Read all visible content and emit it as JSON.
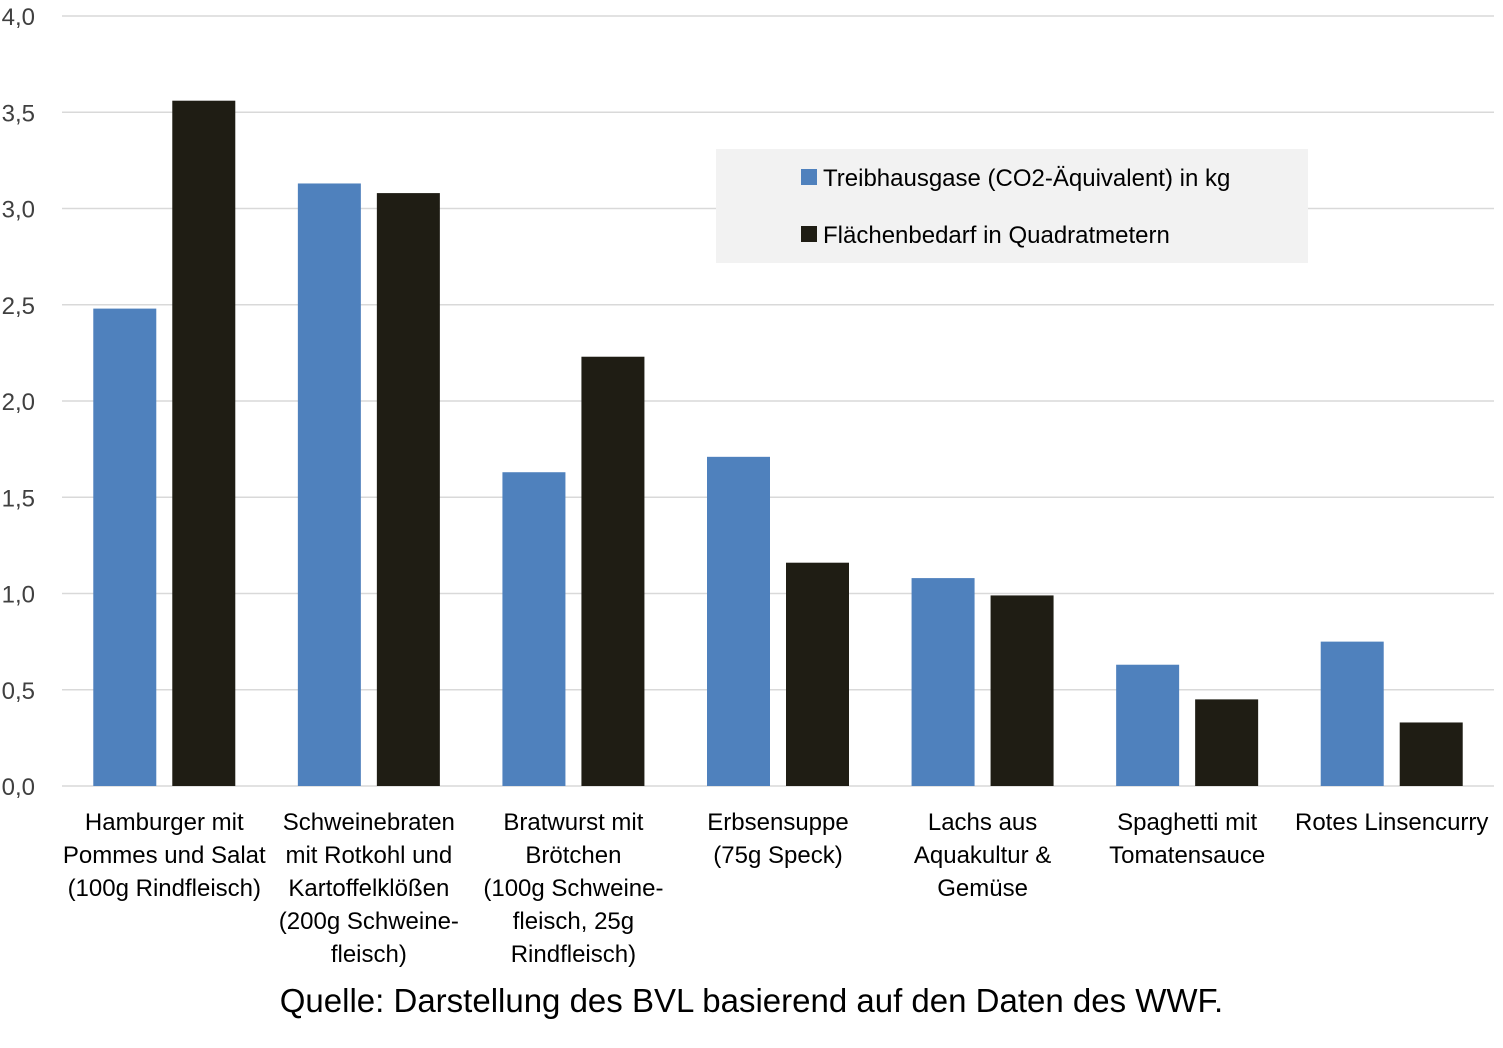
{
  "chart_data": {
    "type": "bar",
    "title": "",
    "xlabel": "",
    "ylabel": "",
    "ylim": [
      0,
      4.0
    ],
    "y_ticks": [
      "0,0",
      "0,5",
      "1,0",
      "1,5",
      "2,0",
      "2,5",
      "3,0",
      "3,5",
      "4,0"
    ],
    "y_tick_values": [
      0,
      0.5,
      1.0,
      1.5,
      2.0,
      2.5,
      3.0,
      3.5,
      4.0
    ],
    "grid": true,
    "legend_position": "top-right",
    "categories": [
      [
        "Hamburger mit",
        "Pommes und Salat",
        "(100g Rindfleisch)"
      ],
      [
        "Schweinebraten",
        "mit Rotkohl und",
        "Kartoffelklößen",
        "(200g Schweine-",
        "fleisch)"
      ],
      [
        "Bratwurst mit",
        "Brötchen",
        "(100g Schweine-",
        "fleisch, 25g",
        "Rindfleisch)"
      ],
      [
        "Erbsensuppe",
        "(75g Speck)"
      ],
      [
        "Lachs aus",
        "Aquakultur &",
        "Gemüse"
      ],
      [
        "Spaghetti mit",
        "Tomatensauce"
      ],
      [
        "Rotes Linsencurry"
      ]
    ],
    "series": [
      {
        "name": "Treibhausgase (CO2-Äquivalent) in kg",
        "color": "#4f81bd",
        "values": [
          2.48,
          3.13,
          1.63,
          1.71,
          1.08,
          0.63,
          0.75
        ]
      },
      {
        "name": "Flächenbedarf in Quadratmetern",
        "color": "#1f1d14",
        "values": [
          3.56,
          3.08,
          2.23,
          1.16,
          0.99,
          0.45,
          0.33
        ]
      }
    ]
  },
  "source_note": "Quelle: Darstellung des BVL basierend auf den Daten des WWF.",
  "colors": {
    "grid": "#d9d9d9",
    "legend_bg": "#f2f2f2",
    "text": "#000000",
    "axis_text": "#404040"
  }
}
